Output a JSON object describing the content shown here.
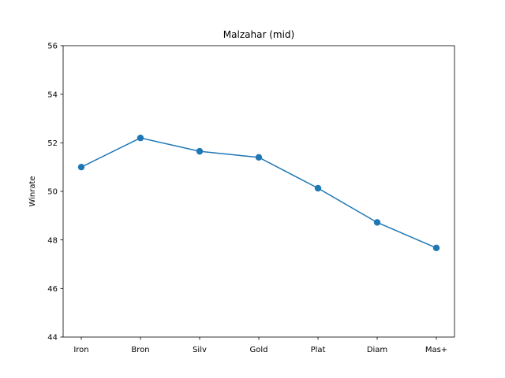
{
  "chart_data": {
    "type": "line",
    "title": "Malzahar (mid)",
    "xlabel": "",
    "ylabel": "Winrate",
    "categories": [
      "Iron",
      "Bron",
      "Silv",
      "Gold",
      "Plat",
      "Diam",
      "Mas+"
    ],
    "series": [
      {
        "values": [
          51.0,
          52.2,
          51.65,
          51.4,
          50.13,
          48.72,
          47.67
        ],
        "color": "#1f77b4",
        "marker": "circle"
      }
    ],
    "ylim": [
      44,
      56
    ],
    "yticks": [
      44,
      46,
      48,
      50,
      52,
      54,
      56
    ],
    "grid": false,
    "legend": "none"
  }
}
